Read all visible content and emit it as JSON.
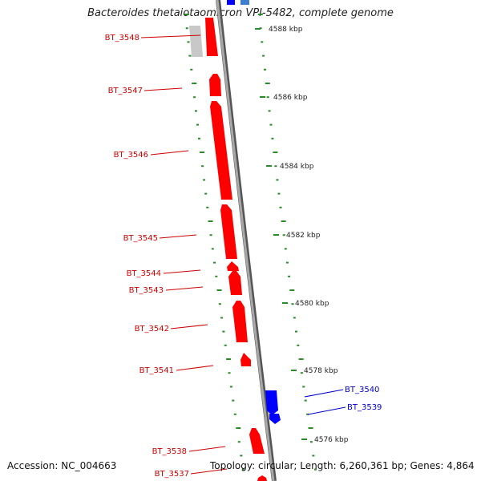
{
  "title": "Bacteroides thetaiotaomicron VPI-5482, complete genome",
  "colors": {
    "forward_gene": "#ff0000",
    "reverse_gene": "#0000ff",
    "reverse_gene_light": "#3f7fcf",
    "pseudo_gene": "#c0c0c0",
    "backbone": "#808080",
    "ruler_dots": "#2a8a2a",
    "gene_label_forward": "#cc0000",
    "gene_label_reverse": "#0000cc"
  },
  "scale_labels": [
    "4588 kbp",
    "4586 kbp",
    "4584 kbp",
    "4582 kbp",
    "4580 kbp",
    "4578 kbp",
    "4576 kbp"
  ],
  "genes": [
    {
      "label": "BT_3548",
      "strand": "forward"
    },
    {
      "label": "BT_3547",
      "strand": "forward"
    },
    {
      "label": "BT_3546",
      "strand": "forward"
    },
    {
      "label": "BT_3545",
      "strand": "forward"
    },
    {
      "label": "BT_3544",
      "strand": "forward"
    },
    {
      "label": "BT_3543",
      "strand": "forward"
    },
    {
      "label": "BT_3542",
      "strand": "forward"
    },
    {
      "label": "BT_3541",
      "strand": "forward"
    },
    {
      "label": "BT_3540",
      "strand": "reverse"
    },
    {
      "label": "BT_3539",
      "strand": "reverse"
    },
    {
      "label": "BT_3538",
      "strand": "forward"
    },
    {
      "label": "BT_3537",
      "strand": "forward"
    }
  ],
  "footer": {
    "accession": "Accession: NC_004663",
    "summary": "Topology: circular; Length: 6,260,361 bp; Genes: 4,864"
  }
}
